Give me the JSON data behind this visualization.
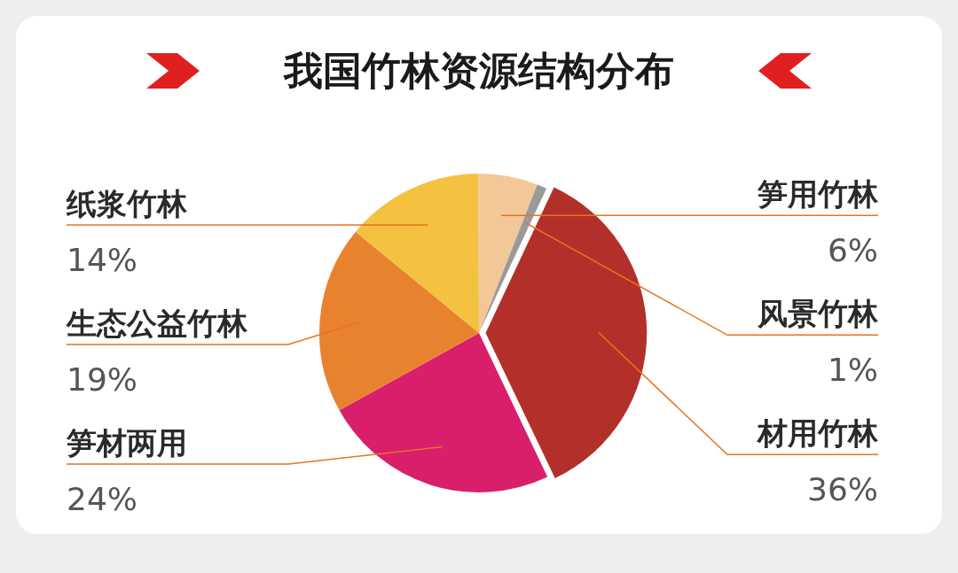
{
  "chart_data": {
    "type": "pie",
    "title": "我国竹林资源结构分布",
    "categories": [
      "材用竹林",
      "笋材两用",
      "生态公益竹林",
      "纸浆竹林",
      "笋用竹林",
      "风景竹林"
    ],
    "values": [
      36,
      24,
      19,
      14,
      6,
      1
    ],
    "value_labels": [
      "36%",
      "24%",
      "19%",
      "14%",
      "6%",
      "1%"
    ],
    "colors": [
      "#b3302a",
      "#d91f6b",
      "#e9822f",
      "#f4c140",
      "#f3c898",
      "#9a9a9a"
    ],
    "legend": false
  }
}
